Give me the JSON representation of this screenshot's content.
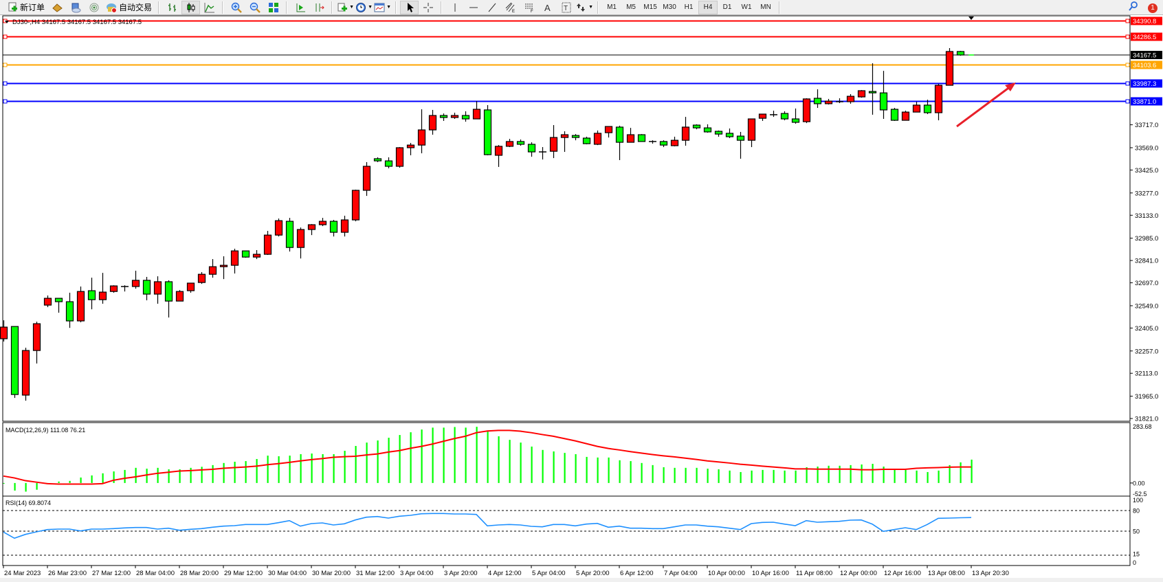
{
  "toolbar": {
    "items": [
      {
        "icon": "new-order-icon",
        "label": "新订单"
      },
      {
        "icon": "market-watch-icon"
      },
      {
        "icon": "navigator-icon"
      },
      {
        "icon": "signals-icon"
      },
      {
        "icon": "auto-trading-icon",
        "label": "自动交易"
      },
      {
        "sep": true
      },
      {
        "icon": "bar-chart-icon"
      },
      {
        "icon": "candlestick-icon",
        "active": true
      },
      {
        "icon": "line-chart-icon"
      },
      {
        "sep": true
      },
      {
        "icon": "zoom-in-icon"
      },
      {
        "icon": "zoom-out-icon"
      },
      {
        "icon": "tile-windows-icon"
      },
      {
        "sep": true
      },
      {
        "icon": "auto-scroll-icon"
      },
      {
        "icon": "chart-shift-icon"
      },
      {
        "sep": true
      },
      {
        "icon": "indicators-icon",
        "dropdown": true
      },
      {
        "icon": "periods-icon",
        "dropdown": true
      },
      {
        "icon": "templates-icon",
        "dropdown": true
      },
      {
        "sep": true
      },
      {
        "icon": "cursor-icon",
        "active": true
      },
      {
        "icon": "crosshair-icon"
      },
      {
        "sep": true
      },
      {
        "icon": "vertical-line-icon"
      },
      {
        "icon": "horizontal-line-icon"
      },
      {
        "icon": "trendline-icon"
      },
      {
        "icon": "equidistant-channel-icon"
      },
      {
        "icon": "fibonacci-icon"
      },
      {
        "icon": "text-icon"
      },
      {
        "icon": "text-label-icon"
      },
      {
        "icon": "arrows-icon",
        "dropdown": true
      },
      {
        "sep": true
      }
    ],
    "timeframes": [
      "M1",
      "M5",
      "M15",
      "M30",
      "H1",
      "H4",
      "D1",
      "W1",
      "MN"
    ],
    "active_timeframe": "H4",
    "notification_count": "1"
  },
  "chart_data": {
    "type": "candlestick",
    "symbol_header": "DJ30-,H4  34167.5 34167.5 34167.5 34167.5",
    "colors": {
      "bull": "#ff0000",
      "bear": "#00ff00",
      "outline": "#000000",
      "macd_hist": "#00ff00",
      "signal": "#ff0000",
      "rsi": "#1e90ff"
    },
    "ylim": [
      31808,
      34416
    ],
    "price_ticks": [
      "33717.0",
      "33569.0",
      "33425.0",
      "33277.0",
      "33133.0",
      "32985.0",
      "32841.0",
      "32697.0",
      "32549.0",
      "32405.0",
      "32257.0",
      "32113.0",
      "31965.0",
      "31821.0"
    ],
    "current_price": "34167.5",
    "hlines": [
      {
        "price": "34390.8",
        "color": "#ff0000"
      },
      {
        "price": "34286.5",
        "color": "#ff0000"
      },
      {
        "price": "34103.6",
        "color": "#ffa500"
      },
      {
        "price": "33987.3",
        "color": "#0000ff"
      },
      {
        "price": "33871.0",
        "color": "#0000ff"
      }
    ],
    "candles_ohlc": [
      [
        32336,
        32455,
        32318,
        32411
      ],
      [
        32415,
        32415,
        31954,
        31976
      ],
      [
        31972,
        32278,
        31936,
        32260
      ],
      [
        32260,
        32446,
        32176,
        32433
      ],
      [
        32553,
        32615,
        32540,
        32597
      ],
      [
        32597,
        32597,
        32504,
        32575
      ],
      [
        32575,
        32633,
        32406,
        32451
      ],
      [
        32451,
        32673,
        32442,
        32641
      ],
      [
        32646,
        32730,
        32526,
        32588
      ],
      [
        32588,
        32761,
        32562,
        32637
      ],
      [
        32641,
        32681,
        32633,
        32677
      ],
      [
        32673,
        32681,
        32641,
        32673
      ],
      [
        32673,
        32775,
        32659,
        32713
      ],
      [
        32713,
        32735,
        32584,
        32624
      ],
      [
        32624,
        32739,
        32562,
        32704
      ],
      [
        32704,
        32713,
        32473,
        32579
      ],
      [
        32579,
        32650,
        32579,
        32641
      ],
      [
        32646,
        32695,
        32633,
        32695
      ],
      [
        32699,
        32766,
        32690,
        32752
      ],
      [
        32752,
        32850,
        32730,
        32801
      ],
      [
        32801,
        32868,
        32721,
        32810
      ],
      [
        32810,
        32917,
        32757,
        32903
      ],
      [
        32903,
        32903,
        32859,
        32863
      ],
      [
        32863,
        32908,
        32850,
        32881
      ],
      [
        32881,
        33032,
        32877,
        33005
      ],
      [
        33005,
        33112,
        32996,
        33098
      ],
      [
        33094,
        33116,
        32899,
        32925
      ],
      [
        32925,
        33054,
        32854,
        33041
      ],
      [
        33041,
        33076,
        33005,
        33072
      ],
      [
        33072,
        33116,
        33063,
        33094
      ],
      [
        33094,
        33103,
        32996,
        33023
      ],
      [
        33023,
        33130,
        32996,
        33103
      ],
      [
        33103,
        33298,
        33094,
        33294
      ],
      [
        33294,
        33476,
        33258,
        33449
      ],
      [
        33498,
        33507,
        33476,
        33484
      ],
      [
        33484,
        33507,
        33436,
        33449
      ],
      [
        33449,
        33573,
        33440,
        33569
      ],
      [
        33569,
        33600,
        33520,
        33586
      ],
      [
        33586,
        33817,
        33533,
        33684
      ],
      [
        33684,
        33813,
        33653,
        33777
      ],
      [
        33777,
        33790,
        33742,
        33764
      ],
      [
        33764,
        33795,
        33755,
        33777
      ],
      [
        33777,
        33804,
        33737,
        33755
      ],
      [
        33755,
        33870,
        33755,
        33817
      ],
      [
        33813,
        33844,
        33520,
        33524
      ],
      [
        33520,
        33586,
        33445,
        33578
      ],
      [
        33578,
        33626,
        33573,
        33609
      ],
      [
        33609,
        33622,
        33582,
        33591
      ],
      [
        33591,
        33604,
        33511,
        33542
      ],
      [
        33542,
        33573,
        33493,
        33542
      ],
      [
        33546,
        33715,
        33502,
        33635
      ],
      [
        33635,
        33675,
        33542,
        33653
      ],
      [
        33648,
        33657,
        33617,
        33635
      ],
      [
        33631,
        33640,
        33591,
        33595
      ],
      [
        33591,
        33680,
        33586,
        33662
      ],
      [
        33666,
        33706,
        33635,
        33706
      ],
      [
        33702,
        33711,
        33489,
        33604
      ],
      [
        33604,
        33697,
        33604,
        33653
      ],
      [
        33653,
        33657,
        33609,
        33609
      ],
      [
        33609,
        33617,
        33595,
        33609
      ],
      [
        33609,
        33617,
        33573,
        33586
      ],
      [
        33582,
        33640,
        33578,
        33617
      ],
      [
        33617,
        33768,
        33582,
        33702
      ],
      [
        33715,
        33720,
        33688,
        33697
      ],
      [
        33697,
        33720,
        33666,
        33671
      ],
      [
        33675,
        33680,
        33640,
        33657
      ],
      [
        33662,
        33693,
        33631,
        33640
      ],
      [
        33644,
        33671,
        33498,
        33617
      ],
      [
        33617,
        33755,
        33573,
        33755
      ],
      [
        33759,
        33786,
        33742,
        33786
      ],
      [
        33782,
        33808,
        33768,
        33782
      ],
      [
        33790,
        33804,
        33746,
        33755
      ],
      [
        33755,
        33822,
        33724,
        33733
      ],
      [
        33737,
        33888,
        33728,
        33884
      ],
      [
        33888,
        33946,
        33826,
        33853
      ],
      [
        33853,
        33884,
        33848,
        33870
      ],
      [
        33861,
        33888,
        33857,
        33866
      ],
      [
        33866,
        33915,
        33853,
        33901
      ],
      [
        33897,
        33941,
        33892,
        33937
      ],
      [
        33932,
        34114,
        33782,
        33923
      ],
      [
        33923,
        34065,
        33755,
        33813
      ],
      [
        33817,
        33826,
        33742,
        33746
      ],
      [
        33746,
        33808,
        33746,
        33799
      ],
      [
        33799,
        33866,
        33799,
        33844
      ],
      [
        33844,
        33879,
        33786,
        33795
      ],
      [
        33795,
        33981,
        33746,
        33972
      ],
      [
        33972,
        34212,
        33972,
        34190
      ],
      [
        34190,
        34194,
        34163,
        34167.5
      ],
      [
        34167.5,
        34167.5,
        34167.5,
        34167.5
      ]
    ],
    "time_labels": [
      {
        "index": 0,
        "label": "24 Mar 2023"
      },
      {
        "index": 4,
        "label": "26 Mar 23:00"
      },
      {
        "index": 8,
        "label": "27 Mar 12:00"
      },
      {
        "index": 12,
        "label": "28 Mar 04:00"
      },
      {
        "index": 16,
        "label": "28 Mar 20:00"
      },
      {
        "index": 20,
        "label": "29 Mar 12:00"
      },
      {
        "index": 24,
        "label": "30 Mar 04:00"
      },
      {
        "index": 28,
        "label": "30 Mar 20:00"
      },
      {
        "index": 32,
        "label": "31 Mar 12:00"
      },
      {
        "index": 36,
        "label": "3 Apr 04:00"
      },
      {
        "index": 40,
        "label": "3 Apr 20:00"
      },
      {
        "index": 44,
        "label": "4 Apr 12:00"
      },
      {
        "index": 48,
        "label": "5 Apr 04:00"
      },
      {
        "index": 52,
        "label": "5 Apr 20:00"
      },
      {
        "index": 56,
        "label": "6 Apr 12:00"
      },
      {
        "index": 60,
        "label": "7 Apr 04:00"
      },
      {
        "index": 64,
        "label": "10 Apr 00:00"
      },
      {
        "index": 68,
        "label": "10 Apr 16:00"
      },
      {
        "index": 72,
        "label": "11 Apr 08:00"
      },
      {
        "index": 76,
        "label": "12 Apr 00:00"
      },
      {
        "index": 80,
        "label": "12 Apr 16:00"
      },
      {
        "index": 84,
        "label": "13 Apr 08:00"
      },
      {
        "index": 88,
        "label": "13 Apr 20:30"
      }
    ],
    "macd": {
      "label": "MACD(12,26,9) 111.08 76.21",
      "ylim": [
        -52.5,
        283.68
      ],
      "tick_labels": [
        "283.68",
        "0.00",
        "-52.5"
      ],
      "histogram": [
        -2,
        -36,
        -41,
        -32,
        -5,
        7,
        10,
        26,
        36,
        46,
        55,
        62,
        72,
        68,
        72,
        65,
        65,
        72,
        77,
        85,
        95,
        101,
        104,
        114,
        130,
        127,
        130,
        137,
        140,
        137,
        137,
        153,
        176,
        192,
        202,
        215,
        228,
        241,
        254,
        263,
        263,
        266,
        263,
        267,
        244,
        222,
        205,
        192,
        173,
        157,
        150,
        143,
        137,
        124,
        121,
        121,
        108,
        104,
        95,
        85,
        75,
        72,
        72,
        72,
        68,
        65,
        59,
        52,
        59,
        62,
        62,
        59,
        59,
        75,
        78,
        82,
        82,
        85,
        88,
        91,
        78,
        68,
        62,
        59,
        52,
        59,
        85,
        98,
        111
      ],
      "signal": [
        33,
        24,
        11,
        4,
        -3,
        -5,
        -5,
        -5,
        -5,
        -3,
        13,
        22,
        29,
        38,
        46,
        51,
        57,
        59,
        62,
        65,
        70,
        73,
        76,
        80,
        87,
        92,
        98,
        105,
        111,
        116,
        122,
        125,
        127,
        133,
        138,
        147,
        154,
        165,
        174,
        185,
        198,
        211,
        222,
        239,
        247,
        250,
        250,
        246,
        239,
        230,
        222,
        211,
        200,
        187,
        174,
        164,
        157,
        149,
        142,
        135,
        129,
        124,
        118,
        112,
        105,
        100,
        95,
        89,
        85,
        80,
        76,
        72,
        67,
        67,
        66,
        66,
        66,
        66,
        63,
        63,
        65,
        65,
        65,
        70,
        72,
        73,
        75,
        76,
        76
      ]
    },
    "rsi": {
      "label": "RSI(14) 69.8074",
      "ylim": [
        0,
        100
      ],
      "levels": [
        80,
        50,
        15
      ],
      "tick_labels": [
        "100",
        "80",
        "50",
        "15",
        "0"
      ],
      "values": [
        48.7,
        39.7,
        45.3,
        49,
        52.3,
        53,
        53,
        50.3,
        53,
        53,
        53.7,
        54.7,
        55.3,
        55.3,
        53,
        54.3,
        51.3,
        52.7,
        53.7,
        55.7,
        57.3,
        58,
        59.7,
        59.7,
        59.7,
        62.3,
        65.3,
        57.3,
        61,
        62,
        59,
        60.7,
        66.3,
        70.3,
        71.3,
        69,
        71.7,
        73,
        75.3,
        75.7,
        75.7,
        75,
        75,
        74.3,
        57.7,
        59,
        59.7,
        59,
        57,
        56.3,
        59.7,
        59.7,
        57.7,
        60.3,
        61.3,
        55.7,
        57.3,
        54.3,
        54.3,
        53.7,
        53.7,
        56.3,
        59,
        59,
        57.3,
        56.3,
        54.3,
        52.3,
        61,
        62.7,
        63,
        60.3,
        58,
        65.3,
        63,
        63.7,
        64.3,
        66,
        66.3,
        60.3,
        49.7,
        52.3,
        55,
        52.3,
        59.7,
        68.7,
        69,
        69.5,
        69.8
      ]
    }
  }
}
